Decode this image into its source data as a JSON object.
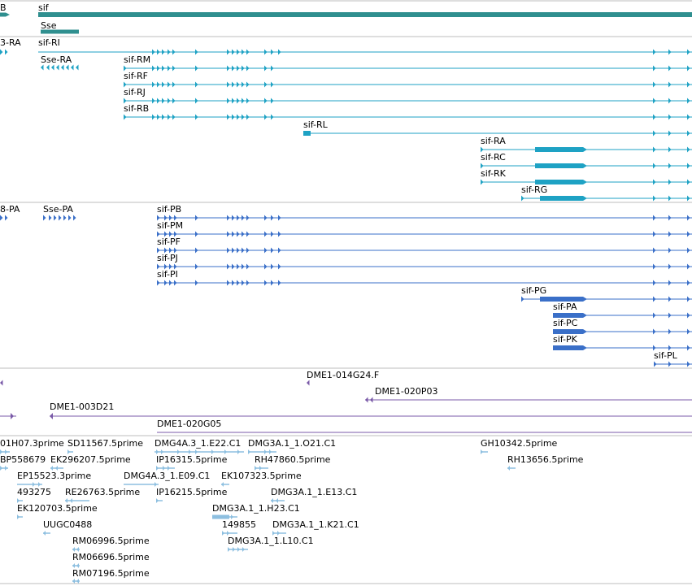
{
  "colors": {
    "gene": "#2f8f8f",
    "transcript": "#1ea2c4",
    "protein": "#3a6fc8",
    "clone": "#7a5aa8",
    "est": "#8dbfe0",
    "separator": "#bdbdbd"
  },
  "tracks": [
    {
      "name": "gene",
      "labels": [
        {
          "text": "B"
        },
        {
          "text": "sif"
        },
        {
          "text": "Sse"
        }
      ]
    },
    {
      "name": "transcript",
      "labels": [
        {
          "text": "3-RA"
        },
        {
          "text": "sif-RI"
        },
        {
          "text": "Sse-RA"
        },
        {
          "text": "sif-RM"
        },
        {
          "text": "sif-RF"
        },
        {
          "text": "sif-RJ"
        },
        {
          "text": "sif-RB"
        },
        {
          "text": "sif-RL"
        },
        {
          "text": "sif-RA"
        },
        {
          "text": "sif-RC"
        },
        {
          "text": "sif-RK"
        },
        {
          "text": "sif-RG"
        }
      ]
    },
    {
      "name": "protein",
      "labels": [
        {
          "text": "8-PA"
        },
        {
          "text": "Sse-PA"
        },
        {
          "text": "sif-PB"
        },
        {
          "text": "sif-PM"
        },
        {
          "text": "sif-PF"
        },
        {
          "text": "sif-PJ"
        },
        {
          "text": "sif-PI"
        },
        {
          "text": "sif-PG"
        },
        {
          "text": "sif-PA"
        },
        {
          "text": "sif-PC"
        },
        {
          "text": "sif-PK"
        },
        {
          "text": "sif-PL"
        }
      ]
    },
    {
      "name": "clone",
      "labels": [
        {
          "text": "DME1-014G24.F"
        },
        {
          "text": "DME1-020P03"
        },
        {
          "text": "DME1-003D21"
        },
        {
          "text": "DME1-020G05"
        }
      ]
    },
    {
      "name": "est",
      "labels": [
        {
          "text": "01H07.3prime"
        },
        {
          "text": "SD11567.5prime"
        },
        {
          "text": "DMG4A.3_1.E22.C1"
        },
        {
          "text": "DMG3A.1_1.O21.C1"
        },
        {
          "text": "GH10342.5prime"
        },
        {
          "text": "BP558679"
        },
        {
          "text": "EK296207.5prime"
        },
        {
          "text": "IP16315.5prime"
        },
        {
          "text": "RH47860.5prime"
        },
        {
          "text": "RH13656.5prime"
        },
        {
          "text": "EP15523.3prime"
        },
        {
          "text": "DMG4A.3_1.E09.C1"
        },
        {
          "text": "EK107323.5prime"
        },
        {
          "text": "493275"
        },
        {
          "text": "RE26763.5prime"
        },
        {
          "text": "IP16215.5prime"
        },
        {
          "text": "DMG3A.1_1.E13.C1"
        },
        {
          "text": "EK120703.5prime"
        },
        {
          "text": "DMG3A.1_1.H23.C1"
        },
        {
          "text": "UUGC0488"
        },
        {
          "text": "149855"
        },
        {
          "text": "DMG3A.1_1.K21.C1"
        },
        {
          "text": "RM06996.5prime"
        },
        {
          "text": "DMG3A.1_1.L10.C1"
        },
        {
          "text": "RM06696.5prime"
        },
        {
          "text": "RM07196.5prime"
        }
      ]
    }
  ]
}
